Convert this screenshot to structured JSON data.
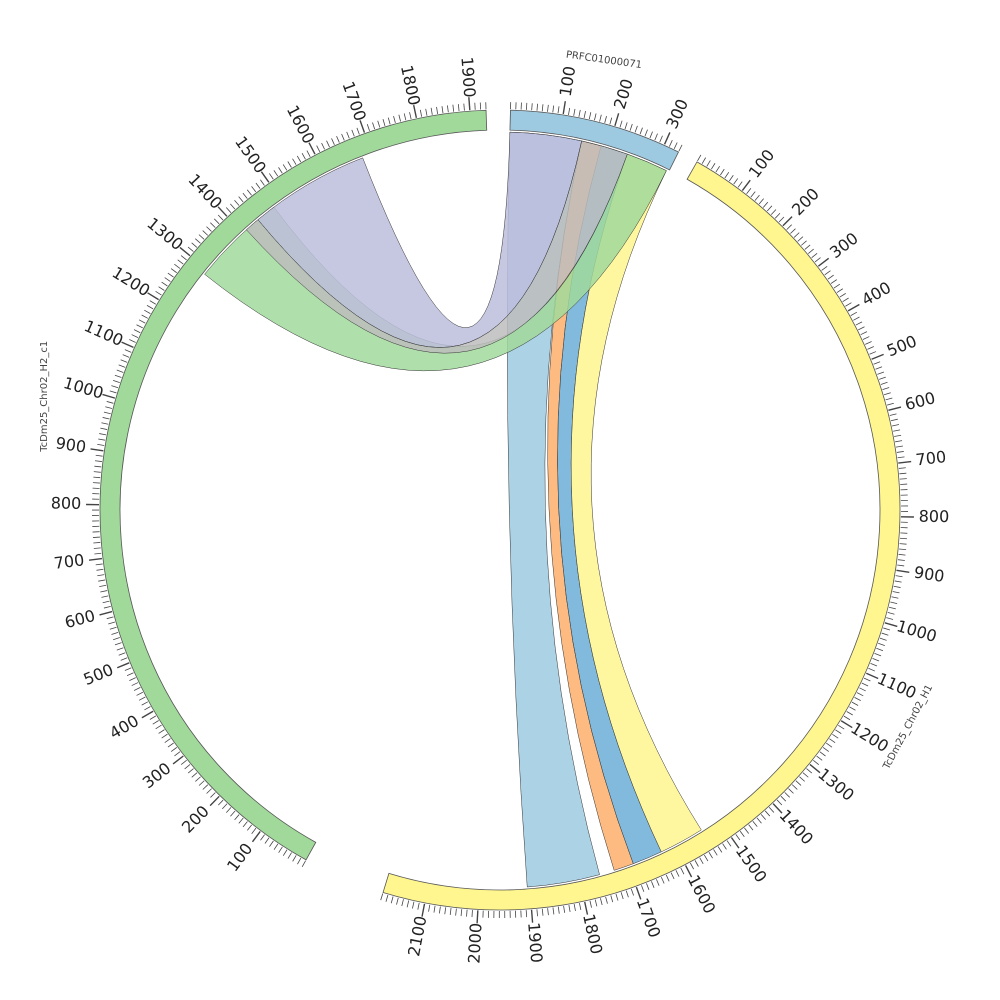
{
  "diagram": {
    "type": "circos",
    "chromosomes": [
      {
        "id": "prfc",
        "label": "PRFC01000071",
        "length": 330,
        "color": "#9ecae1",
        "ticks": [
          "100",
          "200",
          "300"
        ]
      },
      {
        "id": "h1",
        "label": "TcDm25_Chr02_H1",
        "length": 2180,
        "color": "#fff68f",
        "ticks": [
          "100",
          "200",
          "300",
          "400",
          "500",
          "600",
          "700",
          "800",
          "900",
          "1000",
          "1100",
          "1200",
          "1300",
          "1400",
          "1500",
          "1600",
          "1700",
          "1800",
          "1900",
          "2000",
          "2100"
        ]
      },
      {
        "id": "h2",
        "label": "TcDm25_Chr02_H2_c1",
        "length": 1930,
        "color": "#a1d99b",
        "ticks": [
          "100",
          "200",
          "300",
          "400",
          "500",
          "600",
          "700",
          "800",
          "900",
          "1000",
          "1100",
          "1200",
          "1300",
          "1400",
          "1500",
          "1600",
          "1700",
          "1800",
          "1900"
        ]
      }
    ],
    "links": [
      {
        "from": "prfc",
        "from_range": [
          0,
          145
        ],
        "to": "h1",
        "to_range": [
          1760,
          1905
        ],
        "color": "#9ecae1"
      },
      {
        "from": "prfc",
        "from_range": [
          145,
          185
        ],
        "to": "h1",
        "to_range": [
          1690,
          1730
        ],
        "color": "#fdae6b"
      },
      {
        "from": "prfc",
        "from_range": [
          185,
          240
        ],
        "to": "h1",
        "to_range": [
          1630,
          1690
        ],
        "color": "#6baed6"
      },
      {
        "from": "prfc",
        "from_range": [
          240,
          325
        ],
        "to": "h1",
        "to_range": [
          1540,
          1630
        ],
        "color": "#fff68f"
      },
      {
        "from": "prfc",
        "from_range": [
          240,
          325
        ],
        "to": "h2",
        "to_range": [
          1290,
          1480
        ],
        "color": "#a1d99b"
      },
      {
        "from": "prfc",
        "from_range": [
          0,
          145
        ],
        "to": "h2",
        "to_range": [
          1440,
          1680
        ],
        "color": "#bcbddc"
      },
      {
        "from": "prfc",
        "from_range": [
          145,
          240
        ],
        "to": "h2",
        "to_range": [
          1410,
          1440
        ],
        "color": "#bdbdbd"
      }
    ]
  }
}
